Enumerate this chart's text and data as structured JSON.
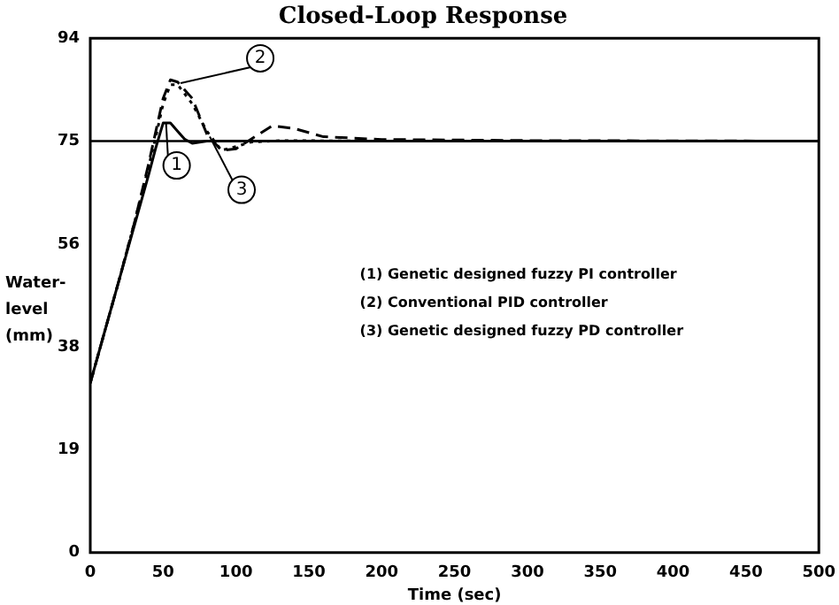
{
  "chart_data": {
    "type": "line",
    "title": "Closed-Loop Response",
    "xlabel": "Time (sec)",
    "ylabel": "Water- level (mm)",
    "xlim": [
      0,
      500
    ],
    "xticks": [
      0,
      50,
      100,
      150,
      200,
      250,
      300,
      350,
      400,
      450,
      500
    ],
    "ylim": [
      0,
      94
    ],
    "yticks": [
      0,
      {
        "value": 18.8,
        "label": "19"
      },
      {
        "value": 37.6,
        "label": "38"
      },
      {
        "value": 56.4,
        "label": "56"
      },
      {
        "value": 75.2,
        "label": "75"
      },
      94
    ],
    "grid": false,
    "legend": false,
    "marker": "none",
    "ref_lines": [
      {
        "axis": "y",
        "value": 75.2,
        "color": "#000000"
      }
    ],
    "series": [
      {
        "color": "#000000",
        "line_style": "solid",
        "x": [
          0,
          10,
          20,
          30,
          40,
          45,
          50,
          55,
          60,
          65,
          70,
          80,
          100,
          200,
          500
        ],
        "values": [
          31,
          40.5,
          50,
          59.5,
          69,
          74,
          78.5,
          78.5,
          77,
          75.5,
          74.8,
          75.2,
          75.2,
          75.2,
          75.2
        ]
      },
      {
        "color": "#000000",
        "line_style": "dashed",
        "x": [
          0,
          10,
          20,
          30,
          40,
          45,
          50,
          55,
          60,
          70,
          80,
          90,
          100,
          110,
          125,
          140,
          160,
          200,
          300,
          500
        ],
        "values": [
          31,
          40.5,
          50,
          60,
          71,
          77,
          83,
          86.4,
          86,
          83,
          76.5,
          73.5,
          73.8,
          75.5,
          78,
          77.5,
          76,
          75.5,
          75.3,
          75.2
        ]
      },
      {
        "color": "#000000",
        "line_style": "dotted",
        "x": [
          0,
          10,
          20,
          30,
          40,
          45,
          50,
          55,
          60,
          70,
          80,
          90,
          100,
          110,
          130,
          200,
          500
        ],
        "values": [
          31,
          40.5,
          50,
          60,
          70.5,
          76,
          82,
          85.5,
          85.5,
          82,
          77,
          73.5,
          74.2,
          75,
          75.3,
          75.2,
          75.2
        ]
      }
    ],
    "annotations": [
      {
        "text": "1",
        "x": 52,
        "y": 78.5
      },
      {
        "text": "2",
        "x": 62,
        "y": 85.8
      },
      {
        "text": "3",
        "x": 82,
        "y": 76
      },
      "(1) Genetic designed fuzzy PI controller",
      "(2) Conventional PID controller",
      "(3) Genetic designed fuzzy PD controller"
    ]
  }
}
